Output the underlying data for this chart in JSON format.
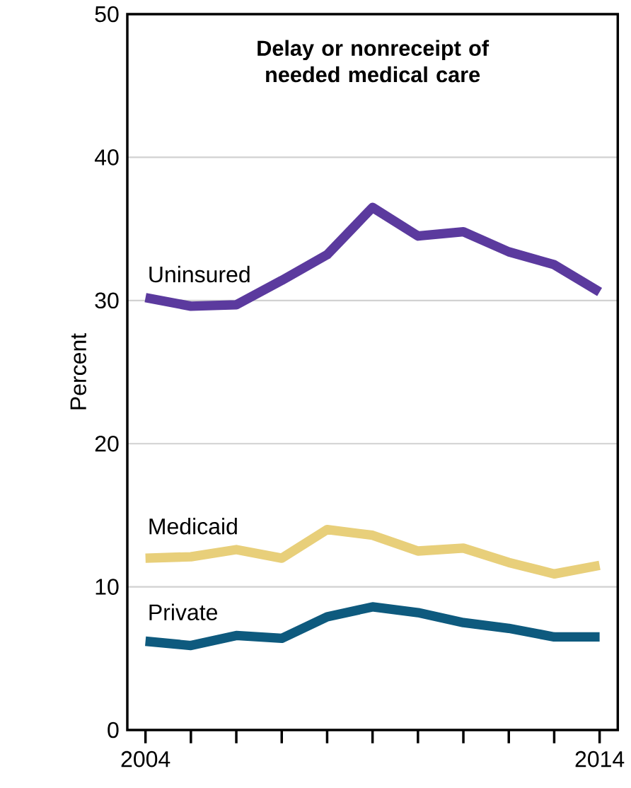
{
  "chart_data": {
    "type": "line",
    "title": "Delay or nonreceipt of needed medical care",
    "ylabel": "Percent",
    "x": [
      2004,
      2005,
      2006,
      2007,
      2008,
      2009,
      2010,
      2011,
      2012,
      2013,
      2014
    ],
    "series": [
      {
        "name": "Uninsured",
        "color": "#5b3a9e",
        "values": [
          30.2,
          29.6,
          29.7,
          31.4,
          33.2,
          36.5,
          34.5,
          34.8,
          33.4,
          32.5,
          30.6
        ]
      },
      {
        "name": "Medicaid",
        "color": "#e8cf7a",
        "values": [
          12.0,
          12.1,
          12.6,
          12.0,
          14.0,
          13.6,
          12.5,
          12.7,
          11.7,
          10.9,
          11.5
        ]
      },
      {
        "name": "Private",
        "color": "#0e5a7e",
        "values": [
          6.2,
          5.9,
          6.6,
          6.4,
          7.9,
          8.6,
          8.2,
          7.5,
          7.1,
          6.5,
          6.5
        ]
      }
    ],
    "xlim": [
      2003.6,
      2014.4
    ],
    "ylim": [
      0,
      50
    ],
    "xticks": [
      2004,
      {
        "value": 2005,
        "label": null
      },
      {
        "value": 2006,
        "label": null
      },
      {
        "value": 2007,
        "label": null
      },
      {
        "value": 2008,
        "label": null
      },
      {
        "value": 2009,
        "label": null
      },
      {
        "value": 2010,
        "label": null
      },
      {
        "value": 2011,
        "label": null
      },
      {
        "value": 2012,
        "label": null
      },
      {
        "value": 2013,
        "label": null
      },
      2014
    ],
    "yticks": [
      0,
      10,
      20,
      30,
      40,
      50
    ],
    "grid": "y",
    "legend": false,
    "marker": "none",
    "line_style": "solid"
  }
}
